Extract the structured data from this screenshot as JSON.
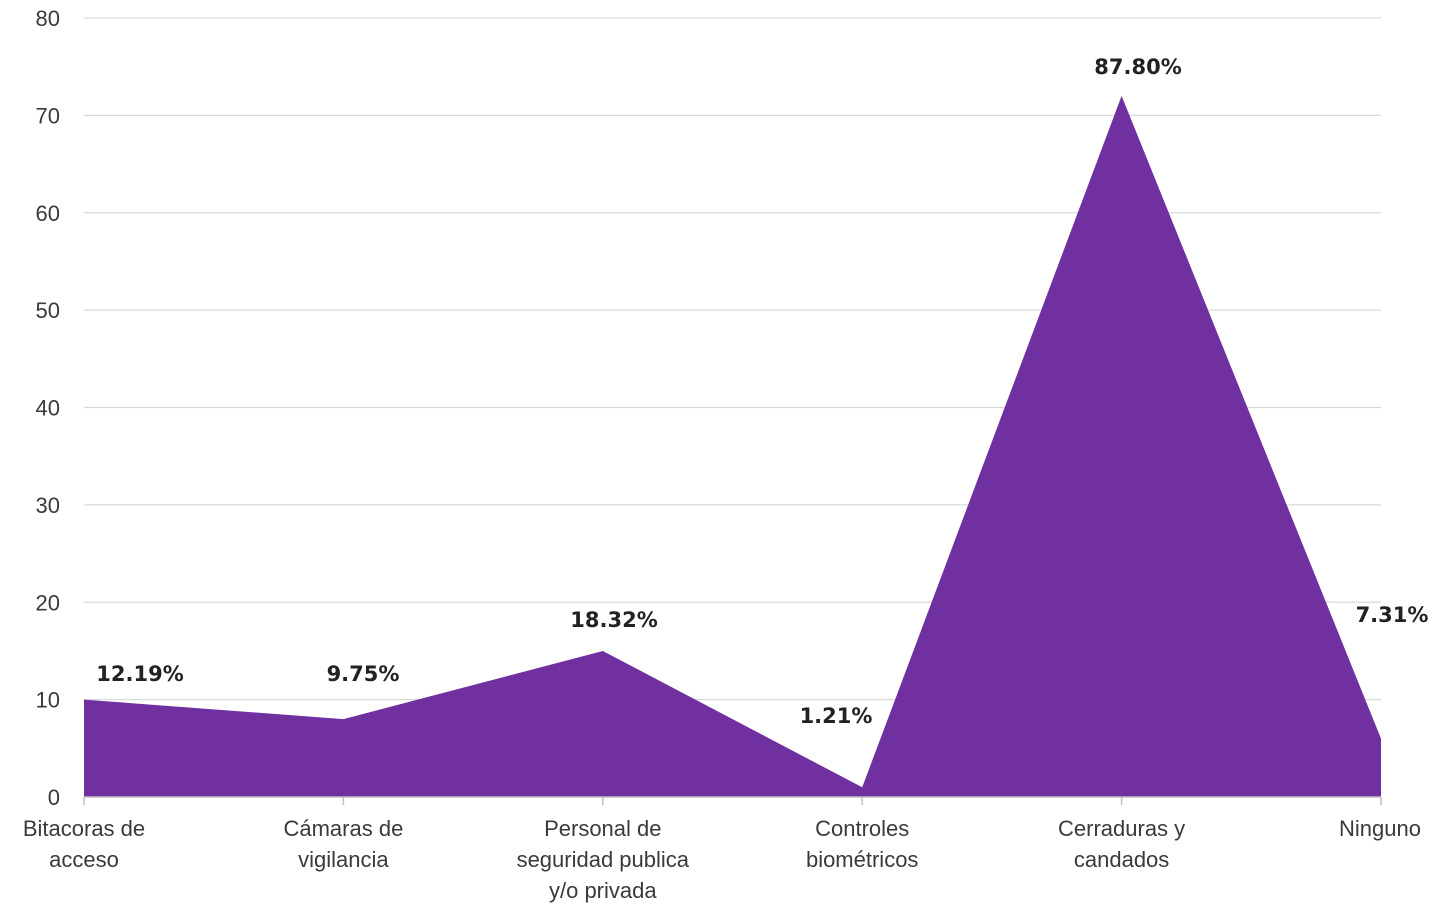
{
  "chart_data": {
    "type": "area",
    "categories": [
      [
        "Bitacoras de",
        "acceso"
      ],
      [
        "Cámaras de",
        "vigilancia"
      ],
      [
        "Personal de",
        "seguridad publica",
        "y/o privada"
      ],
      [
        "Controles",
        "biométricos"
      ],
      [
        "Cerraduras y",
        "candados"
      ],
      [
        "Ninguno"
      ]
    ],
    "series": [
      {
        "values": [
          10,
          8,
          15,
          1,
          72,
          6
        ],
        "data_labels": [
          "12.19%",
          "9.75%",
          "18.32%",
          "1.21%",
          "87.80%",
          "7.31%"
        ]
      }
    ],
    "ylim": [
      0,
      80
    ],
    "yticks": [
      "0",
      "10",
      "20",
      "30",
      "40",
      "50",
      "60",
      "70",
      "80"
    ],
    "grid": true,
    "legend": "none",
    "colors": {
      "area": "#70309f",
      "grid": "#d9d9d9",
      "text": "#3a3a3a",
      "label": "#222222"
    }
  }
}
